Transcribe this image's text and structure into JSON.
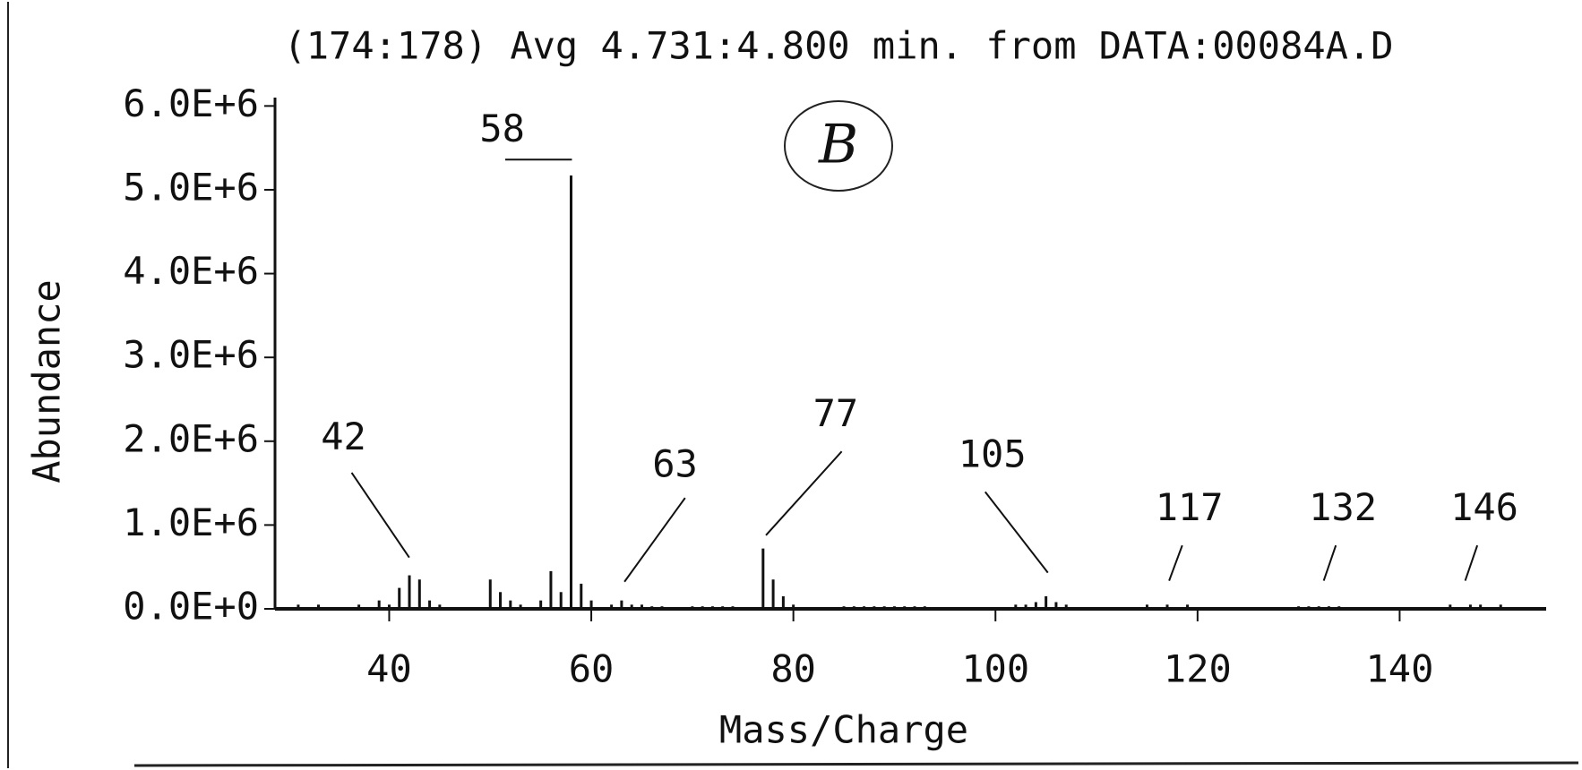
{
  "chart_data": {
    "type": "bar",
    "title": "(174:178)  Avg 4.731:4.800 min. from DATA:00084A.D",
    "annotation": "B",
    "x_label": "Mass/Charge",
    "y_label": "Abundance",
    "color": "#111111",
    "x": [
      31,
      33,
      37,
      39,
      40,
      41,
      42,
      43,
      44,
      45,
      50,
      51,
      52,
      53,
      55,
      56,
      57,
      58,
      59,
      60,
      62,
      63,
      64,
      65,
      66,
      67,
      70,
      71,
      72,
      73,
      74,
      77,
      78,
      79,
      80,
      85,
      86,
      87,
      88,
      89,
      90,
      91,
      92,
      93,
      102,
      103,
      104,
      105,
      106,
      107,
      115,
      117,
      119,
      130,
      131,
      132,
      133,
      134,
      145,
      147,
      148,
      150
    ],
    "values": [
      50000,
      50000,
      50000,
      100000,
      50000,
      250000,
      400000,
      350000,
      100000,
      50000,
      350000,
      200000,
      100000,
      50000,
      100000,
      450000,
      200000,
      5170000,
      300000,
      100000,
      50000,
      100000,
      50000,
      50000,
      30000,
      30000,
      30000,
      30000,
      30000,
      30000,
      30000,
      720000,
      350000,
      150000,
      50000,
      30000,
      30000,
      30000,
      30000,
      30000,
      30000,
      30000,
      30000,
      30000,
      50000,
      50000,
      80000,
      150000,
      80000,
      50000,
      50000,
      50000,
      50000,
      30000,
      30000,
      30000,
      30000,
      30000,
      50000,
      50000,
      50000,
      50000
    ],
    "peak_labels": [
      42,
      58,
      63,
      77,
      105,
      117,
      132,
      146
    ],
    "xlim": [
      28.7,
      154.5
    ],
    "xticks": [
      40,
      60,
      80,
      100,
      120,
      140
    ],
    "ylim": [
      0,
      6100000
    ],
    "yticks": [
      {
        "value": 0,
        "label": "0.0E+0"
      },
      {
        "value": 1000000,
        "label": "1.0E+6"
      },
      {
        "value": 2000000,
        "label": "2.0E+6"
      },
      {
        "value": 3000000,
        "label": "3.0E+6"
      },
      {
        "value": 4000000,
        "label": "4.0E+6"
      },
      {
        "value": 5000000,
        "label": "5.0E+6"
      },
      {
        "value": 6000000,
        "label": "6.0E+6"
      }
    ],
    "grid": false
  }
}
